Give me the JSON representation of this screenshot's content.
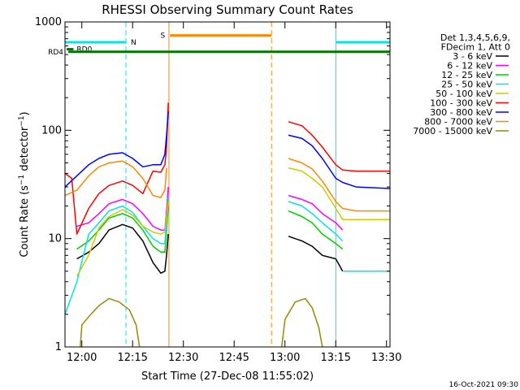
{
  "chart_data": {
    "type": "line",
    "title": "RHESSI Observing Summary Count Rates",
    "xlabel": "Start Time (27-Dec-08 11:55:02)",
    "ylabel": "Count Rate (s⁻¹ detector⁻¹)",
    "ylabel_parts": {
      "main": "Count Rate (s",
      "sup1": "−1",
      "mid": " detector",
      "sup2": "−1",
      "end": ")"
    },
    "y_scale": "log",
    "xlim_minutes": [
      0,
      36
    ],
    "ylim": [
      1,
      1000
    ],
    "x_ticks": [
      {
        "label": "12:00",
        "minute": 4.97
      },
      {
        "label": "12:15",
        "minute": 19.97
      },
      {
        "label": "12:30",
        "minute": 34.97
      },
      {
        "label": "12:45",
        "minute": 49.97
      },
      {
        "label": "13:00",
        "minute": 64.97
      },
      {
        "label": "13:15",
        "minute": 79.97
      },
      {
        "label": "13:30",
        "minute": 94.97
      }
    ],
    "x_range_minutes": [
      0,
      96
    ],
    "y_ticks": [
      {
        "label": "1",
        "value": 1
      },
      {
        "label": "10",
        "value": 10
      },
      {
        "label": "100",
        "value": 100
      },
      {
        "label": "1000",
        "value": 1000
      }
    ],
    "legend_header": [
      "Det 1,3,4,5,6,9,",
      "FDecim 1, Att 0"
    ],
    "legend_placement": "right",
    "series": [
      {
        "name": "3 - 6 keV",
        "color": "#000000",
        "segments": [
          [
            [
              3.5,
              6.5
            ],
            [
              7,
              7.5
            ],
            [
              10,
              9
            ],
            [
              13,
              12
            ],
            [
              17,
              13.5
            ],
            [
              20,
              12.5
            ],
            [
              23,
              9.5
            ],
            [
              26,
              6
            ],
            [
              28.3,
              4.8
            ],
            [
              29.5,
              5
            ],
            [
              30,
              7
            ],
            [
              30.5,
              11
            ]
          ],
          [
            [
              66,
              10.5
            ],
            [
              70,
              9.5
            ],
            [
              73,
              8.5
            ],
            [
              76,
              7
            ],
            [
              80,
              6.5
            ],
            [
              82,
              5
            ]
          ]
        ]
      },
      {
        "name": "6 - 12 keV",
        "color": "#ff00ff",
        "segments": [
          [
            [
              3.5,
              13
            ],
            [
              7,
              14
            ],
            [
              10,
              17
            ],
            [
              13,
              21
            ],
            [
              17,
              23
            ],
            [
              20,
              21
            ],
            [
              23,
              17
            ],
            [
              26,
              13
            ],
            [
              28.3,
              12
            ],
            [
              29.5,
              12
            ],
            [
              30,
              18
            ],
            [
              30.5,
              30
            ]
          ],
          [
            [
              66,
              25
            ],
            [
              70,
              23
            ],
            [
              73,
              21
            ],
            [
              76,
              17
            ],
            [
              80,
              14
            ],
            [
              82,
              12
            ]
          ]
        ]
      },
      {
        "name": "12 - 25 keV",
        "color": "#00cc00",
        "segments": [
          [
            [
              3.5,
              8
            ],
            [
              7,
              9.5
            ],
            [
              10,
              12
            ],
            [
              13,
              15.5
            ],
            [
              17,
              17
            ],
            [
              20,
              15.5
            ],
            [
              23,
              12
            ],
            [
              26,
              8.5
            ],
            [
              28.3,
              7.5
            ],
            [
              29.5,
              7.5
            ],
            [
              30,
              12
            ],
            [
              30.5,
              20
            ]
          ],
          [
            [
              66,
              18
            ],
            [
              70,
              16
            ],
            [
              73,
              14
            ],
            [
              76,
              11
            ],
            [
              80,
              9
            ],
            [
              82,
              8
            ]
          ]
        ]
      },
      {
        "name": "25 - 50 keV",
        "color": "#00e5e5",
        "segments": [
          [
            [
              0,
              2
            ],
            [
              3.5,
              4
            ],
            [
              7,
              11
            ],
            [
              10,
              14
            ],
            [
              13,
              18
            ],
            [
              17,
              20
            ],
            [
              20,
              17.5
            ],
            [
              23,
              13
            ],
            [
              26,
              10
            ],
            [
              28.3,
              9
            ],
            [
              29.5,
              9
            ],
            [
              30,
              14
            ],
            [
              30.5,
              24
            ]
          ],
          [
            [
              66,
              22
            ],
            [
              70,
              20
            ],
            [
              73,
              17
            ],
            [
              76,
              14
            ],
            [
              80,
              11
            ],
            [
              82,
              9.5
            ]
          ],
          [
            [
              82.2,
              5
            ],
            [
              96,
              5
            ]
          ]
        ]
      },
      {
        "name": "50 - 100 keV",
        "color": "#cccc00",
        "segments": [
          [
            [
              3.5,
              4.5
            ],
            [
              7,
              7
            ],
            [
              10,
              12.5
            ],
            [
              13,
              16
            ],
            [
              17,
              18.5
            ],
            [
              20,
              16.5
            ],
            [
              23,
              13
            ],
            [
              26,
              11.5
            ],
            [
              28.3,
              11
            ],
            [
              29.5,
              11.5
            ],
            [
              30,
              16
            ],
            [
              30.5,
              22
            ]
          ],
          [
            [
              66,
              45
            ],
            [
              70,
              42
            ],
            [
              73,
              36
            ],
            [
              76,
              30
            ],
            [
              80,
              19
            ],
            [
              82,
              15
            ],
            [
              86,
              15
            ],
            [
              96,
              15
            ]
          ]
        ]
      },
      {
        "name": "100 - 300 keV",
        "color": "#ff0000",
        "segments": [
          [
            [
              0,
              40
            ],
            [
              2,
              36
            ],
            [
              3.5,
              11
            ],
            [
              7,
              19
            ],
            [
              10,
              26
            ],
            [
              13,
              31
            ],
            [
              17,
              34
            ],
            [
              20,
              31
            ],
            [
              23,
              26
            ],
            [
              26,
              42
            ],
            [
              28.3,
              41
            ],
            [
              29.5,
              48
            ],
            [
              30,
              70
            ],
            [
              30.5,
              180
            ]
          ],
          [
            [
              66,
              120
            ],
            [
              70,
              110
            ],
            [
              73,
              90
            ],
            [
              76,
              70
            ],
            [
              80,
              48
            ],
            [
              82,
              43
            ],
            [
              86,
              42
            ],
            [
              96,
              42
            ]
          ]
        ]
      },
      {
        "name": "300 - 800 keV",
        "color": "#0000ff",
        "segments": [
          [
            [
              0,
              30
            ],
            [
              3.5,
              38
            ],
            [
              7,
              48
            ],
            [
              10,
              55
            ],
            [
              13,
              60
            ],
            [
              17,
              62
            ],
            [
              20,
              55
            ],
            [
              23,
              46
            ],
            [
              26,
              48
            ],
            [
              28.3,
              48
            ],
            [
              29.5,
              60
            ],
            [
              30,
              90
            ],
            [
              30.5,
              150
            ]
          ],
          [
            [
              66,
              90
            ],
            [
              70,
              84
            ],
            [
              73,
              72
            ],
            [
              76,
              55
            ],
            [
              80,
              36
            ],
            [
              82,
              33
            ],
            [
              86,
              30
            ],
            [
              96,
              29
            ]
          ]
        ]
      },
      {
        "name": "800 - 7000 keV",
        "color": "#ff8800",
        "segments": [
          [
            [
              0,
              25
            ],
            [
              3.5,
              28
            ],
            [
              7,
              38
            ],
            [
              10,
              46
            ],
            [
              13,
              50
            ],
            [
              17,
              52
            ],
            [
              20,
              46
            ],
            [
              23,
              36
            ],
            [
              26,
              25
            ],
            [
              28.3,
              24
            ],
            [
              29.5,
              28
            ],
            [
              30,
              45
            ]
          ],
          [
            [
              66,
              55
            ],
            [
              70,
              50
            ],
            [
              73,
              44
            ],
            [
              76,
              34
            ],
            [
              80,
              22
            ],
            [
              82,
              19
            ],
            [
              86,
              18
            ],
            [
              96,
              18
            ]
          ]
        ]
      },
      {
        "name": "7000 - 15000 keV",
        "color": "#998800",
        "segments": [
          [
            [
              4.5,
              1
            ],
            [
              5,
              1.6
            ],
            [
              7,
              1.9
            ],
            [
              10,
              2.4
            ],
            [
              13,
              2.8
            ],
            [
              16,
              2.6
            ],
            [
              19,
              2.2
            ],
            [
              21,
              1.6
            ],
            [
              22,
              1
            ]
          ],
          [
            [
              64,
              1
            ],
            [
              65,
              1.8
            ],
            [
              68,
              2.6
            ],
            [
              71,
              2.8
            ],
            [
              73,
              2.3
            ],
            [
              75,
              1.5
            ],
            [
              76,
              1
            ]
          ]
        ]
      }
    ],
    "annotations": {
      "segments": [
        {
          "label": "N",
          "color": "#00e5e5",
          "from_minute": 0,
          "to_minute": 18,
          "value": 650
        },
        {
          "label": "",
          "color": "#00e5e5",
          "from_minute": 80,
          "to_minute": 96,
          "value": 650
        },
        {
          "label": "S",
          "color": "#ff8800",
          "from_minute": 31,
          "to_minute": 61,
          "value": 750
        },
        {
          "label": "RD0",
          "color": "#007700",
          "from_minute": 0.5,
          "to_minute": 2.5,
          "value": 560
        },
        {
          "label": "RD4",
          "color": "#007700",
          "from_minute": 1,
          "to_minute": 96,
          "value": 530
        }
      ],
      "vlines": [
        {
          "color": "#00e5e5",
          "minute": 0,
          "style": "solid"
        },
        {
          "color": "#00e5e5",
          "minute": 18,
          "style": "dashed"
        },
        {
          "color": "#ff8800",
          "minute": 30.7,
          "style": "solid"
        },
        {
          "color": "#ff8800",
          "minute": 61,
          "style": "dashed"
        },
        {
          "color": "#00e5e5",
          "minute": 80,
          "style": "solid"
        },
        {
          "color": "#00e5e5",
          "minute": 96,
          "style": "dashed"
        }
      ]
    },
    "footer_date": "16-Oct-2021 09:30"
  }
}
